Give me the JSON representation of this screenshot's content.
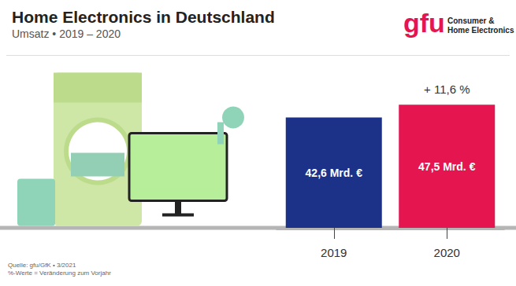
{
  "chart_data": {
    "type": "bar",
    "title": "Home Electronics in Deutschland",
    "subtitle": "Umsatz • 2019 – 2020",
    "logo": {
      "text": "gfu",
      "lines": [
        "Consumer &",
        "Home Electronics"
      ]
    },
    "notes": [
      "Quelle: gfu/GfK • 3/2021",
      "%-Werte = Veränderung zum Vorjahr"
    ],
    "categories": [
      "2019",
      "2020"
    ],
    "values": [
      42.6,
      47.5
    ],
    "value_labels": [
      "42,6 Mrd. €",
      "47,5 Mrd. €"
    ],
    "colors": [
      "#1c3188",
      "#e5154f"
    ],
    "annotations": [
      {
        "text": "+ 11,6 %",
        "category": "2020"
      }
    ],
    "ylim": [
      0,
      50
    ],
    "yticks": [
      0,
      50
    ],
    "grid": false,
    "data_labels": true,
    "tick_labels": "x"
  }
}
